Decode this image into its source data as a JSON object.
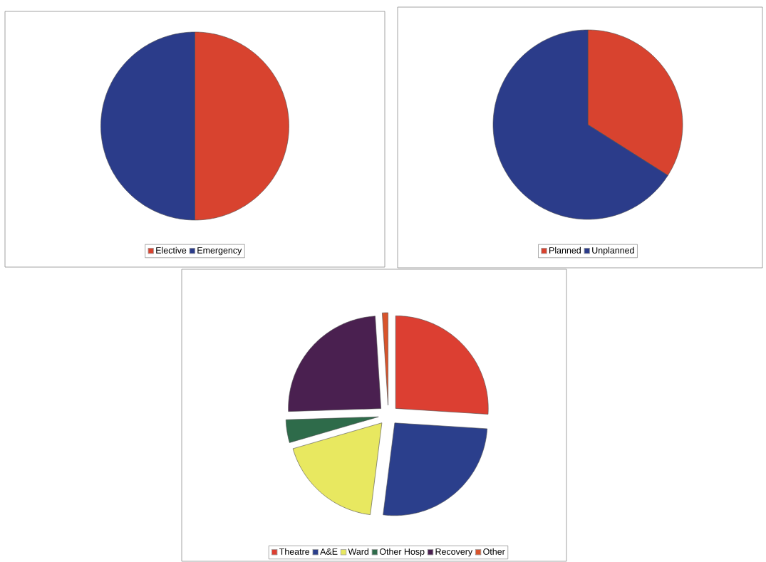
{
  "chart_data": [
    {
      "type": "pie",
      "categories": [
        "Elective",
        "Emergency"
      ],
      "values": [
        50,
        50
      ],
      "colors": [
        "#d8432f",
        "#2b3c8a"
      ],
      "legend": "bottom"
    },
    {
      "type": "pie",
      "categories": [
        "Planned",
        "Unplanned"
      ],
      "values": [
        34,
        66
      ],
      "colors": [
        "#d8432f",
        "#2b3c8a"
      ],
      "legend": "bottom"
    },
    {
      "type": "pie",
      "categories": [
        "Theatre",
        "A&E",
        "Ward",
        "Other Hosp",
        "Recovery",
        "Other"
      ],
      "values": [
        26,
        26,
        18.5,
        4,
        24.5,
        1
      ],
      "colors": [
        "#dc3f32",
        "#2b3f8c",
        "#e8e860",
        "#2e6b4a",
        "#4a2050",
        "#d9542c"
      ],
      "legend": "bottom"
    }
  ]
}
